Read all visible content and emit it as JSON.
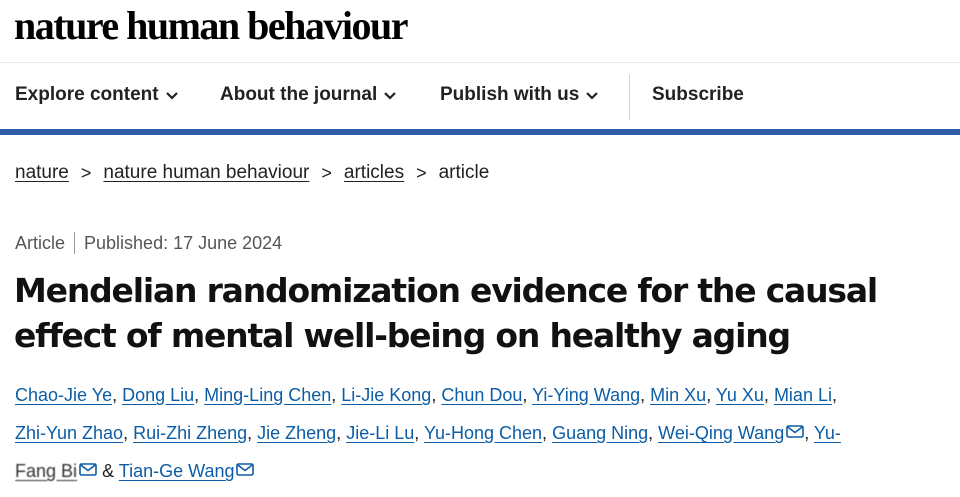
{
  "header": {
    "brand": "nature human behaviour"
  },
  "nav": {
    "items": [
      {
        "label": "Explore content",
        "has_dropdown": true
      },
      {
        "label": "About the journal",
        "has_dropdown": true
      },
      {
        "label": "Publish with us",
        "has_dropdown": true
      },
      {
        "label": "Subscribe",
        "has_dropdown": false
      }
    ]
  },
  "breadcrumb": {
    "items": [
      "nature",
      "nature human behaviour",
      "articles"
    ],
    "current": "article",
    "separator": ">"
  },
  "article": {
    "type": "Article",
    "published": "Published: 17 June 2024",
    "title": "Mendelian randomization evidence for the causal effect of mental well-being on healthy aging"
  },
  "authors": {
    "line1": [
      "Chao-Jie Ye",
      "Dong Liu",
      "Ming-Ling Chen",
      "Li-Jie Kong",
      "Chun Dou",
      "Yi-Ying Wang",
      "Min Xu",
      "Yu Xu",
      "Mian Li"
    ],
    "line2": [
      "Zhi-Yun Zhao",
      "Rui-Zhi Zheng",
      "Jie Zheng",
      "Jie-Li Lu",
      "Yu-Hong Chen",
      "Guang Ning",
      "Wei-Qing Wang"
    ],
    "line2_trailing": "Yu-",
    "line3_first": "Fang Bi",
    "ampersand": "&",
    "last_author": "Tian-Ge Wang",
    "separator": ",",
    "mail_icon": "envelope-icon"
  },
  "colors": {
    "accent_bar": "#2f5da8",
    "author_link": "#0c5da5",
    "text": "#222222"
  }
}
